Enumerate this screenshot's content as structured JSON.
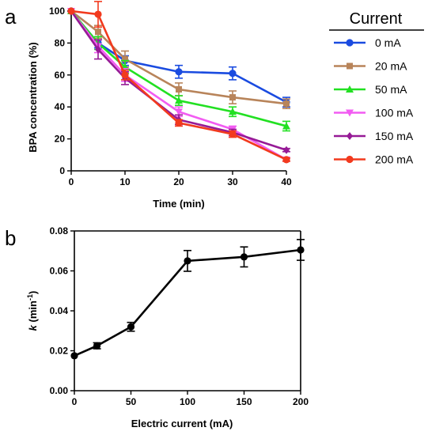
{
  "panel_a_letter": "a",
  "panel_b_letter": "b",
  "chart_data": [
    {
      "type": "line",
      "panel": "a",
      "xlabel": "Time (min)",
      "ylabel": "BPA concentration (%)",
      "xlim": [
        0,
        40
      ],
      "ylim": [
        0,
        100
      ],
      "x_ticks": [
        "0",
        "10",
        "20",
        "30",
        "40"
      ],
      "y_ticks": [
        "0",
        "20",
        "40",
        "60",
        "80",
        "100"
      ],
      "x": [
        0,
        5,
        10,
        20,
        30,
        40
      ],
      "grid": false,
      "legend": {
        "title": "Current",
        "position": "right"
      },
      "series": [
        {
          "name": "0 mA",
          "color": "#1a4be0",
          "marker": "circle",
          "values": [
            100,
            80,
            69,
            62,
            61,
            43
          ],
          "errors": [
            0,
            3,
            3,
            4,
            4,
            3
          ]
        },
        {
          "name": "20 mA",
          "color": "#b8845a",
          "marker": "square",
          "values": [
            100,
            87,
            70,
            51,
            46,
            42
          ],
          "errors": [
            0,
            4,
            5,
            4,
            4,
            3
          ]
        },
        {
          "name": "50 mA",
          "color": "#22e022",
          "marker": "triangle-up",
          "values": [
            100,
            80,
            65,
            44,
            37,
            28
          ],
          "errors": [
            0,
            4,
            4,
            3,
            3,
            3
          ]
        },
        {
          "name": "100 mA",
          "color": "#f25cf2",
          "marker": "triangle-down",
          "values": [
            100,
            78,
            60,
            37,
            26,
            7
          ],
          "errors": [
            0,
            4,
            4,
            3,
            2,
            1
          ]
        },
        {
          "name": "150 mA",
          "color": "#961a96",
          "marker": "diamond",
          "values": [
            100,
            76,
            58,
            32,
            24,
            13
          ],
          "errors": [
            0,
            6,
            4,
            3,
            2,
            1
          ]
        },
        {
          "name": "200 mA",
          "color": "#f23a1e",
          "marker": "circle",
          "values": [
            100,
            98,
            60,
            30,
            23,
            7
          ],
          "errors": [
            0,
            8,
            3,
            2,
            2,
            1
          ]
        }
      ]
    },
    {
      "type": "line",
      "panel": "b",
      "xlabel": "Electric current (mA)",
      "ylabel_main": "k",
      "ylabel_unit": "(min",
      "ylabel_sup": "-1",
      "ylabel_close": ")",
      "xlim": [
        0,
        200
      ],
      "ylim": [
        0,
        0.08
      ],
      "x_ticks": [
        "0",
        "50",
        "100",
        "150",
        "200"
      ],
      "y_ticks": [
        "0.00",
        "0.02",
        "0.04",
        "0.06",
        "0.08"
      ],
      "grid": false,
      "series": [
        {
          "color": "#000000",
          "marker": "circle",
          "x": [
            0,
            20,
            50,
            100,
            150,
            200
          ],
          "values": [
            0.0175,
            0.0225,
            0.032,
            0.065,
            0.067,
            0.0705
          ],
          "errors": [
            0,
            0.0015,
            0.0022,
            0.0052,
            0.005,
            0.0052
          ]
        }
      ]
    }
  ]
}
